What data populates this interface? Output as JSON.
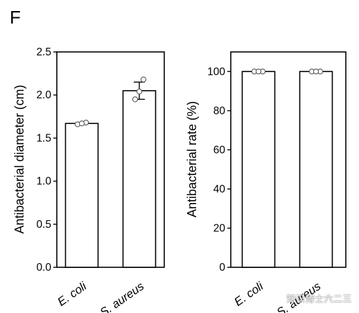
{
  "panel_label": "F",
  "watermark": "知识博士六二三",
  "chart_data": [
    {
      "type": "bar",
      "categories": [
        "E. coli",
        "S. aureus"
      ],
      "values": [
        1.67,
        2.05
      ],
      "errors": [
        0.01,
        0.1
      ],
      "points": [
        [
          1.66,
          1.68,
          1.67
        ],
        [
          1.95,
          2.18,
          2.04
        ]
      ],
      "xlabel": "",
      "ylabel": "Antibacterial diameter (cm)",
      "ylim": [
        0,
        2.5
      ],
      "yticks": [
        0.0,
        0.5,
        1.0,
        1.5,
        2.0,
        2.5
      ],
      "ytick_labels": [
        "0.0",
        "0.5",
        "1.0",
        "1.5",
        "2.0",
        "2.5"
      ],
      "grid": false
    },
    {
      "type": "bar",
      "categories": [
        "E. coli",
        "S. aureus"
      ],
      "values": [
        100,
        100
      ],
      "errors": [
        0.3,
        0.3
      ],
      "points": [
        [
          100,
          100,
          100
        ],
        [
          100,
          100,
          100
        ]
      ],
      "xlabel": "",
      "ylabel": "Antibacterial rate (%)",
      "ylim": [
        0,
        110
      ],
      "yticks": [
        0,
        20,
        40,
        60,
        80,
        100
      ],
      "ytick_labels": [
        "0",
        "20",
        "40",
        "60",
        "80",
        "100"
      ],
      "grid": false
    }
  ]
}
